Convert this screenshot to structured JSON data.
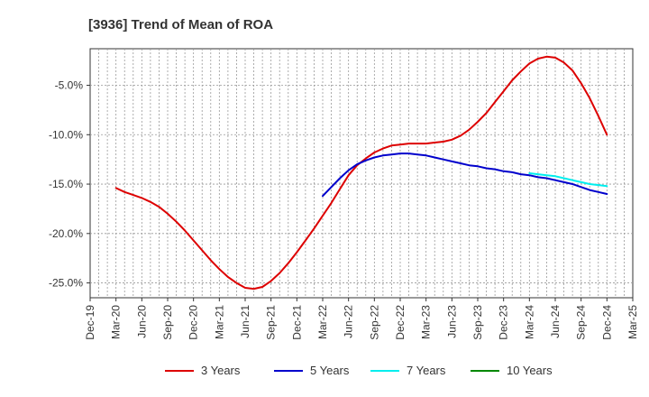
{
  "chart_data": {
    "type": "line",
    "title": "[3936]  Trend of Mean of ROA",
    "xlabel": "",
    "ylabel": "",
    "x_ticks": [
      "Dec-19",
      "Mar-20",
      "Jun-20",
      "Sep-20",
      "Dec-20",
      "Mar-21",
      "Jun-21",
      "Sep-21",
      "Dec-21",
      "Mar-22",
      "Jun-22",
      "Sep-22",
      "Dec-22",
      "Mar-23",
      "Jun-23",
      "Sep-23",
      "Dec-23",
      "Mar-24",
      "Jun-24",
      "Sep-24",
      "Dec-24",
      "Mar-25"
    ],
    "y_ticks": [
      -5,
      -10,
      -15,
      -20,
      -25
    ],
    "y_tick_labels": [
      "-5.0%",
      "-10.0%",
      "-15.0%",
      "-20.0%",
      "-25.0%"
    ],
    "ylim": [
      -26.5,
      -1.3
    ],
    "grid": true,
    "legend_position": "bottom",
    "series": [
      {
        "name": "3 Years",
        "color": "#dd0000",
        "points": [
          [
            "Mar-20",
            -15.4
          ],
          [
            "Apr-20",
            -15.8
          ],
          [
            "May-20",
            -16.1
          ],
          [
            "Jun-20",
            -16.4
          ],
          [
            "Jul-20",
            -16.8
          ],
          [
            "Aug-20",
            -17.3
          ],
          [
            "Sep-20",
            -18.0
          ],
          [
            "Oct-20",
            -18.8
          ],
          [
            "Nov-20",
            -19.7
          ],
          [
            "Dec-20",
            -20.7
          ],
          [
            "Jan-21",
            -21.7
          ],
          [
            "Feb-21",
            -22.7
          ],
          [
            "Mar-21",
            -23.6
          ],
          [
            "Apr-21",
            -24.4
          ],
          [
            "May-21",
            -25.0
          ],
          [
            "Jun-21",
            -25.5
          ],
          [
            "Jul-21",
            -25.6
          ],
          [
            "Aug-21",
            -25.4
          ],
          [
            "Sep-21",
            -24.8
          ],
          [
            "Oct-21",
            -24.0
          ],
          [
            "Nov-21",
            -23.0
          ],
          [
            "Dec-21",
            -21.9
          ],
          [
            "Jan-22",
            -20.7
          ],
          [
            "Feb-22",
            -19.5
          ],
          [
            "Mar-22",
            -18.2
          ],
          [
            "Apr-22",
            -16.9
          ],
          [
            "May-22",
            -15.5
          ],
          [
            "Jun-22",
            -14.1
          ],
          [
            "Jul-22",
            -13.1
          ],
          [
            "Aug-22",
            -12.4
          ],
          [
            "Sep-22",
            -11.8
          ],
          [
            "Oct-22",
            -11.4
          ],
          [
            "Nov-22",
            -11.1
          ],
          [
            "Dec-22",
            -11.0
          ],
          [
            "Jan-23",
            -10.9
          ],
          [
            "Feb-23",
            -10.9
          ],
          [
            "Mar-23",
            -10.9
          ],
          [
            "Apr-23",
            -10.8
          ],
          [
            "May-23",
            -10.7
          ],
          [
            "Jun-23",
            -10.5
          ],
          [
            "Jul-23",
            -10.1
          ],
          [
            "Aug-23",
            -9.5
          ],
          [
            "Sep-23",
            -8.7
          ],
          [
            "Oct-23",
            -7.8
          ],
          [
            "Nov-23",
            -6.7
          ],
          [
            "Dec-23",
            -5.6
          ],
          [
            "Jan-24",
            -4.5
          ],
          [
            "Feb-24",
            -3.6
          ],
          [
            "Mar-24",
            -2.8
          ],
          [
            "Apr-24",
            -2.3
          ],
          [
            "May-24",
            -2.1
          ],
          [
            "Jun-24",
            -2.2
          ],
          [
            "Jul-24",
            -2.7
          ],
          [
            "Aug-24",
            -3.5
          ],
          [
            "Sep-24",
            -4.8
          ],
          [
            "Oct-24",
            -6.3
          ],
          [
            "Nov-24",
            -8.1
          ],
          [
            "Dec-24",
            -10.0
          ]
        ]
      },
      {
        "name": "5 Years",
        "color": "#0000cc",
        "points": [
          [
            "Mar-22",
            -16.2
          ],
          [
            "Apr-22",
            -15.3
          ],
          [
            "May-22",
            -14.4
          ],
          [
            "Jun-22",
            -13.6
          ],
          [
            "Jul-22",
            -13.0
          ],
          [
            "Aug-22",
            -12.6
          ],
          [
            "Sep-22",
            -12.3
          ],
          [
            "Oct-22",
            -12.1
          ],
          [
            "Nov-22",
            -12.0
          ],
          [
            "Dec-22",
            -11.9
          ],
          [
            "Jan-23",
            -11.9
          ],
          [
            "Feb-23",
            -12.0
          ],
          [
            "Mar-23",
            -12.1
          ],
          [
            "Apr-23",
            -12.3
          ],
          [
            "May-23",
            -12.5
          ],
          [
            "Jun-23",
            -12.7
          ],
          [
            "Jul-23",
            -12.9
          ],
          [
            "Aug-23",
            -13.1
          ],
          [
            "Sep-23",
            -13.2
          ],
          [
            "Oct-23",
            -13.4
          ],
          [
            "Nov-23",
            -13.5
          ],
          [
            "Dec-23",
            -13.7
          ],
          [
            "Jan-24",
            -13.8
          ],
          [
            "Feb-24",
            -14.0
          ],
          [
            "Mar-24",
            -14.1
          ],
          [
            "Apr-24",
            -14.3
          ],
          [
            "May-24",
            -14.4
          ],
          [
            "Jun-24",
            -14.6
          ],
          [
            "Jul-24",
            -14.8
          ],
          [
            "Aug-24",
            -15.0
          ],
          [
            "Sep-24",
            -15.3
          ],
          [
            "Oct-24",
            -15.6
          ],
          [
            "Nov-24",
            -15.8
          ],
          [
            "Dec-24",
            -16.0
          ]
        ]
      },
      {
        "name": "7 Years",
        "color": "#00eeee",
        "points": [
          [
            "Mar-24",
            -13.9
          ],
          [
            "Apr-24",
            -14.0
          ],
          [
            "May-24",
            -14.1
          ],
          [
            "Jun-24",
            -14.2
          ],
          [
            "Jul-24",
            -14.4
          ],
          [
            "Aug-24",
            -14.6
          ],
          [
            "Sep-24",
            -14.8
          ],
          [
            "Oct-24",
            -15.0
          ],
          [
            "Nov-24",
            -15.1
          ],
          [
            "Dec-24",
            -15.2
          ]
        ]
      },
      {
        "name": "10 Years",
        "color": "#008800",
        "points": []
      }
    ]
  }
}
